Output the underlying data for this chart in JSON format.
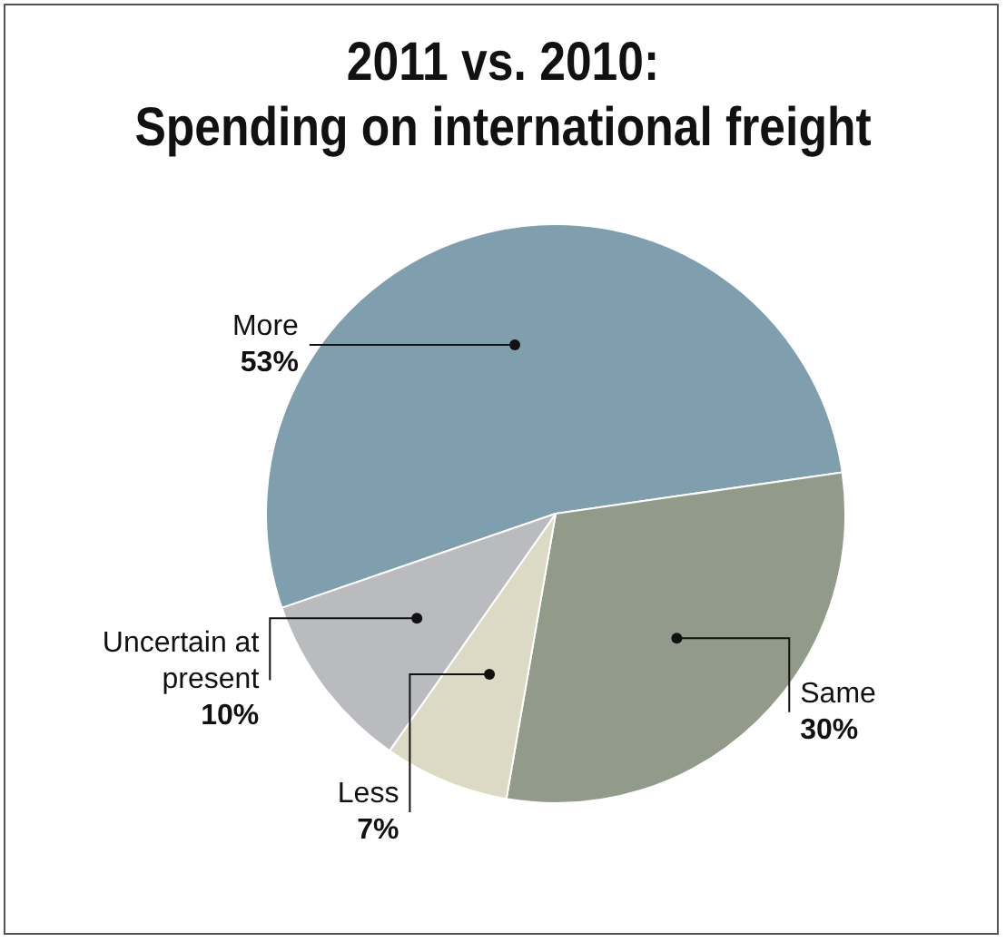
{
  "chart_data": {
    "type": "pie",
    "title": "2011 vs. 2010: Spending on international freight",
    "categories": [
      "More",
      "Same",
      "Less",
      "Uncertain at present"
    ],
    "values": [
      53,
      30,
      7,
      10
    ],
    "value_labels": [
      "53%",
      "30%",
      "7%",
      "10%"
    ],
    "colors": [
      "#7f9fae",
      "#929a8a",
      "#dcd9c4",
      "#b9bbbe"
    ],
    "legend": false
  }
}
